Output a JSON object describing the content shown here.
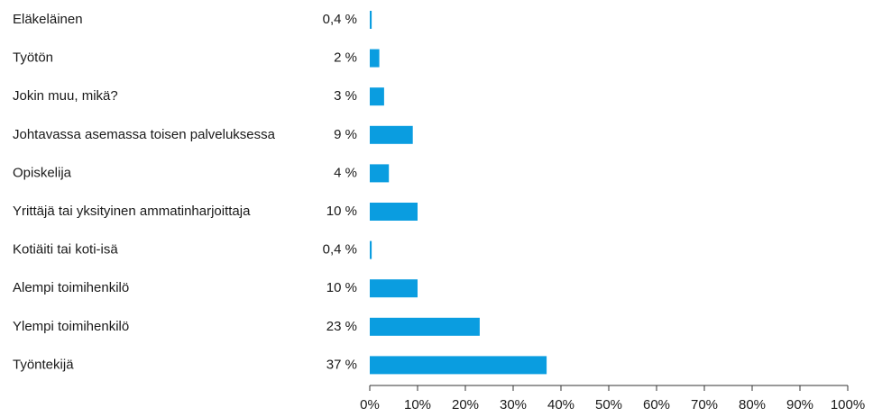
{
  "chart_data": {
    "type": "hbar",
    "categories": [
      "Eläkeläinen",
      "Työtön",
      "Jokin muu, mikä?",
      "Johtavassa asemassa toisen palveluksessa",
      "Opiskelija",
      "Yrittäjä tai yksityinen ammatinharjoittaja",
      "Kotiäiti tai koti-isä",
      "Alempi toimihenkilö",
      "Ylempi toimihenkilö",
      "Työntekijä"
    ],
    "values": [
      0.4,
      2,
      3,
      9,
      4,
      10,
      0.4,
      10,
      23,
      37
    ],
    "value_labels": [
      "0,4 %",
      "2 %",
      "3 %",
      "9 %",
      "4 %",
      "10 %",
      "0,4 %",
      "10 %",
      "23 %",
      "37 %"
    ],
    "color": "#0a9de0",
    "xlim": [
      0,
      100
    ],
    "xticks": [
      {
        "value": 0,
        "label": "0%"
      },
      {
        "value": 10,
        "label": "10%"
      },
      {
        "value": 20,
        "label": "20%"
      },
      {
        "value": 30,
        "label": "30%"
      },
      {
        "value": 40,
        "label": "40%"
      },
      {
        "value": 50,
        "label": "50%"
      },
      {
        "value": 60,
        "label": "60%"
      },
      {
        "value": 70,
        "label": "70%"
      },
      {
        "value": 80,
        "label": "80%"
      },
      {
        "value": 90,
        "label": "90%"
      },
      {
        "value": 100,
        "label": "100%"
      }
    ]
  }
}
